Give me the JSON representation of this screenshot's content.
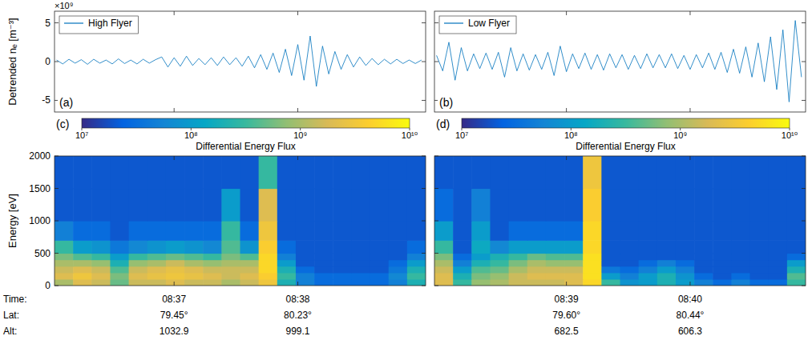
{
  "chart_data": [
    {
      "type": "line",
      "yscale_label": "×10⁹",
      "ylabel": "Detrended nₑ [m⁻³]",
      "panel_label": "(a)",
      "xlim": [
        2162,
        2342
      ],
      "xticks": [
        2220,
        2280
      ],
      "ylim": [
        -6.5,
        6.5
      ],
      "yticks": [
        -5,
        0,
        5
      ],
      "tick_labels": "y",
      "legend": "upper left",
      "series": [
        {
          "name": "High Flyer",
          "color": "#0072bd",
          "x": [
            2163,
            2166,
            2169,
            2172,
            2175,
            2178,
            2181,
            2184,
            2187,
            2190,
            2193,
            2196,
            2199,
            2202,
            2205,
            2208,
            2211,
            2214,
            2217,
            2220,
            2223,
            2226,
            2229,
            2232,
            2235,
            2238,
            2241,
            2244,
            2247,
            2250,
            2253,
            2256,
            2259,
            2262,
            2265,
            2268,
            2271,
            2274,
            2277,
            2280,
            2283,
            2286,
            2289,
            2292,
            2295,
            2298,
            2301,
            2304,
            2307,
            2310,
            2313,
            2316,
            2319,
            2322,
            2325,
            2328,
            2331,
            2334,
            2337,
            2340
          ],
          "values": [
            0.2,
            -0.3,
            0.3,
            -0.2,
            0.25,
            -0.35,
            0.3,
            -0.2,
            0.2,
            -0.3,
            0.35,
            -0.25,
            0.2,
            -0.3,
            0.3,
            -0.2,
            0.25,
            0.6,
            -0.7,
            0.5,
            -0.6,
            0.7,
            -0.5,
            0.4,
            -0.4,
            0.5,
            -0.5,
            0.6,
            -0.4,
            0.5,
            -0.6,
            0.7,
            -0.8,
            0.9,
            -1.0,
            1.1,
            -1.4,
            1.6,
            -1.8,
            2.2,
            -2.4,
            3.3,
            -3.2,
            2.0,
            -1.6,
            1.3,
            -1.0,
            0.9,
            -0.7,
            0.6,
            -0.5,
            0.4,
            -0.4,
            0.3,
            -0.3,
            0.3,
            -0.25,
            0.2,
            -0.25,
            0.2
          ]
        }
      ]
    },
    {
      "type": "line",
      "panel_label": "(b)",
      "xlim": [
        2276,
        2456
      ],
      "xticks": [
        2340,
        2400
      ],
      "ylim": [
        -6.5,
        6.5
      ],
      "yticks": [
        -5,
        0,
        5
      ],
      "tick_labels": false,
      "legend": "upper left",
      "series": [
        {
          "name": "Low Flyer",
          "color": "#0072bd",
          "x": [
            2277,
            2280,
            2283,
            2286,
            2289,
            2292,
            2295,
            2298,
            2301,
            2304,
            2307,
            2310,
            2313,
            2316,
            2319,
            2322,
            2325,
            2328,
            2331,
            2334,
            2337,
            2340,
            2343,
            2346,
            2349,
            2352,
            2355,
            2358,
            2361,
            2364,
            2367,
            2370,
            2373,
            2376,
            2379,
            2382,
            2385,
            2388,
            2391,
            2394,
            2397,
            2400,
            2403,
            2406,
            2409,
            2412,
            2415,
            2418,
            2421,
            2424,
            2427,
            2430,
            2433,
            2436,
            2439,
            2442,
            2445,
            2448,
            2451,
            2454
          ],
          "values": [
            0.8,
            -1.2,
            2.5,
            -2.4,
            1.8,
            -1.2,
            1.0,
            -0.9,
            1.1,
            -1.0,
            1.2,
            -2.0,
            1.8,
            -1.2,
            1.0,
            -1.1,
            0.9,
            -1.0,
            1.2,
            -1.8,
            2.0,
            -1.3,
            1.0,
            -0.9,
            1.1,
            -1.0,
            0.9,
            -1.1,
            1.0,
            -0.8,
            0.9,
            -1.0,
            0.8,
            -0.9,
            1.0,
            -0.8,
            0.9,
            -0.8,
            1.0,
            -0.9,
            0.8,
            -1.0,
            0.9,
            -0.8,
            1.1,
            -1.0,
            1.2,
            -1.4,
            1.6,
            -1.5,
            1.9,
            -2.0,
            2.4,
            -2.6,
            3.2,
            -3.6,
            4.1,
            -5.2,
            5.3,
            -2.0
          ]
        }
      ]
    },
    {
      "type": "heatmap",
      "ylabel": "Energy [eV]",
      "xlabel": "Time:",
      "panel_label": "(c)",
      "xlim": [
        2162,
        2342
      ],
      "xticks": [
        {
          "value": 2220,
          "label": "08:37"
        },
        {
          "value": 2280,
          "label": "08:38"
        }
      ],
      "tick_rows": [
        {
          "label": "Lat:",
          "values": [
            "79.45°",
            "80.23°"
          ]
        },
        {
          "label": "Alt:",
          "values": [
            1032.9,
            999.1
          ]
        }
      ],
      "ylim": [
        0,
        2000
      ],
      "yticks": [
        0,
        500,
        1000,
        1500,
        2000
      ],
      "tick_labels": true,
      "x_edges": [
        2162,
        2171,
        2180,
        2189,
        2198,
        2207,
        2216,
        2225,
        2234,
        2243,
        2252,
        2261,
        2270,
        2279,
        2288,
        2297,
        2306,
        2315,
        2324,
        2333,
        2342
      ],
      "y_edges": [
        0,
        100,
        200,
        300,
        400,
        500,
        700,
        1000,
        1500,
        2000
      ],
      "cells": [
        [
          1000000000.0,
          2000000000.0,
          1500000000.0,
          500000000.0,
          1500000000.0,
          1500000000.0,
          2000000000.0,
          1500000000.0,
          1500000000.0,
          1000000000.0,
          1500000000.0,
          3000000000.0,
          200000000.0,
          50000000.0,
          30000000.0,
          30000000.0,
          30000000.0,
          30000000.0,
          50000000.0,
          200000000.0
        ],
        [
          2000000000.0,
          3000000000.0,
          2000000000.0,
          600000000.0,
          2000000000.0,
          2500000000.0,
          3000000000.0,
          2500000000.0,
          2000000000.0,
          1500000000.0,
          2000000000.0,
          4000000000.0,
          300000000.0,
          50000000.0,
          30000000.0,
          30000000.0,
          30000000.0,
          30000000.0,
          60000000.0,
          300000000.0
        ],
        [
          1500000000.0,
          2000000000.0,
          1500000000.0,
          400000000.0,
          1500000000.0,
          2000000000.0,
          2500000000.0,
          2000000000.0,
          1500000000.0,
          1500000000.0,
          1500000000.0,
          5000000000.0,
          200000000.0,
          30000000.0,
          20000000.0,
          20000000.0,
          20000000.0,
          20000000.0,
          40000000.0,
          200000000.0
        ],
        [
          1000000000.0,
          1000000000.0,
          800000000.0,
          200000000.0,
          800000000.0,
          1000000000.0,
          1500000000.0,
          1000000000.0,
          800000000.0,
          1000000000.0,
          1000000000.0,
          5000000000.0,
          100000000.0,
          20000000.0,
          20000000.0,
          20000000.0,
          20000000.0,
          20000000.0,
          30000000.0,
          100000000.0
        ],
        [
          600000000.0,
          400000000.0,
          300000000.0,
          100000000.0,
          300000000.0,
          400000000.0,
          500000000.0,
          400000000.0,
          300000000.0,
          600000000.0,
          400000000.0,
          5000000000.0,
          50000000.0,
          20000000.0,
          20000000.0,
          20000000.0,
          20000000.0,
          20000000.0,
          20000000.0,
          50000000.0
        ],
        [
          300000000.0,
          100000000.0,
          80000000.0,
          40000000.0,
          60000000.0,
          80000000.0,
          100000000.0,
          80000000.0,
          60000000.0,
          400000000.0,
          80000000.0,
          4000000000.0,
          30000000.0,
          20000000.0,
          20000000.0,
          20000000.0,
          20000000.0,
          20000000.0,
          20000000.0,
          30000000.0
        ],
        [
          50000000.0,
          30000000.0,
          30000000.0,
          20000000.0,
          30000000.0,
          30000000.0,
          30000000.0,
          30000000.0,
          30000000.0,
          300000000.0,
          30000000.0,
          3000000000.0,
          20000000.0,
          20000000.0,
          20000000.0,
          20000000.0,
          20000000.0,
          20000000.0,
          20000000.0,
          20000000.0
        ],
        [
          20000000.0,
          20000000.0,
          20000000.0,
          20000000.0,
          20000000.0,
          20000000.0,
          20000000.0,
          20000000.0,
          20000000.0,
          100000000.0,
          20000000.0,
          2000000000.0,
          20000000.0,
          20000000.0,
          20000000.0,
          20000000.0,
          20000000.0,
          20000000.0,
          20000000.0,
          20000000.0
        ],
        [
          20000000.0,
          20000000.0,
          20000000.0,
          20000000.0,
          20000000.0,
          20000000.0,
          20000000.0,
          20000000.0,
          20000000.0,
          20000000.0,
          20000000.0,
          300000000.0,
          20000000.0,
          20000000.0,
          20000000.0,
          20000000.0,
          20000000.0,
          20000000.0,
          20000000.0,
          20000000.0
        ]
      ],
      "colorbar": {
        "label": "Differential Energy Flux",
        "range": [
          10000000.0,
          10000000000.0
        ],
        "log": true,
        "ticks": [
          {
            "value": 10000000.0,
            "label": "10⁷"
          },
          {
            "value": 100000000.0,
            "label": "10⁸"
          },
          {
            "value": 1000000000.0,
            "label": "10⁹"
          },
          {
            "value": 10000000000.0,
            "label": "10¹⁰"
          }
        ]
      }
    },
    {
      "type": "heatmap",
      "panel_label": "(d)",
      "xlim": [
        2276,
        2456
      ],
      "xticks": [
        {
          "value": 2340,
          "label": "08:39"
        },
        {
          "value": 2400,
          "label": "08:40"
        }
      ],
      "tick_rows": [
        {
          "values": [
            "79.60°",
            "80.44°"
          ]
        },
        {
          "values": [
            682.5,
            606.3
          ]
        }
      ],
      "ylim": [
        0,
        2000
      ],
      "yticks": [
        0,
        500,
        1000,
        1500,
        2000
      ],
      "tick_labels": "x",
      "x_edges": [
        2276,
        2285,
        2294,
        2303,
        2312,
        2321,
        2330,
        2339,
        2348,
        2357,
        2366,
        2375,
        2384,
        2393,
        2402,
        2411,
        2420,
        2429,
        2438,
        2447,
        2456
      ],
      "y_edges": [
        0,
        100,
        200,
        300,
        400,
        500,
        700,
        1000,
        1500,
        2000
      ],
      "cells": [
        [
          2000000000.0,
          300000000.0,
          800000000.0,
          1000000000.0,
          1500000000.0,
          1500000000.0,
          1500000000.0,
          2000000000.0,
          5000000000.0,
          300000000.0,
          80000000.0,
          100000000.0,
          200000000.0,
          100000000.0,
          50000000.0,
          30000000.0,
          50000000.0,
          30000000.0,
          30000000.0,
          300000000.0
        ],
        [
          2000000000.0,
          200000000.0,
          600000000.0,
          800000000.0,
          1500000000.0,
          2000000000.0,
          2000000000.0,
          2000000000.0,
          6000000000.0,
          100000000.0,
          50000000.0,
          100000000.0,
          200000000.0,
          80000000.0,
          30000000.0,
          20000000.0,
          30000000.0,
          20000000.0,
          20000000.0,
          400000000.0
        ],
        [
          1500000000.0,
          100000000.0,
          400000000.0,
          500000000.0,
          1000000000.0,
          1500000000.0,
          1500000000.0,
          1500000000.0,
          6000000000.0,
          40000000.0,
          30000000.0,
          50000000.0,
          100000000.0,
          50000000.0,
          20000000.0,
          20000000.0,
          20000000.0,
          20000000.0,
          20000000.0,
          200000000.0
        ],
        [
          1000000000.0,
          50000000.0,
          200000000.0,
          300000000.0,
          600000000.0,
          1000000000.0,
          800000000.0,
          800000000.0,
          6000000000.0,
          20000000.0,
          20000000.0,
          30000000.0,
          50000000.0,
          30000000.0,
          20000000.0,
          20000000.0,
          20000000.0,
          20000000.0,
          20000000.0,
          100000000.0
        ],
        [
          600000000.0,
          30000000.0,
          100000000.0,
          200000000.0,
          300000000.0,
          500000000.0,
          400000000.0,
          400000000.0,
          6000000000.0,
          20000000.0,
          20000000.0,
          20000000.0,
          20000000.0,
          20000000.0,
          20000000.0,
          20000000.0,
          20000000.0,
          20000000.0,
          20000000.0,
          30000000.0
        ],
        [
          300000000.0,
          20000000.0,
          150000000.0,
          60000000.0,
          100000000.0,
          100000000.0,
          100000000.0,
          100000000.0,
          5000000000.0,
          20000000.0,
          20000000.0,
          20000000.0,
          20000000.0,
          20000000.0,
          20000000.0,
          20000000.0,
          20000000.0,
          20000000.0,
          20000000.0,
          20000000.0
        ],
        [
          100000000.0,
          20000000.0,
          100000000.0,
          20000000.0,
          30000000.0,
          30000000.0,
          30000000.0,
          30000000.0,
          5000000000.0,
          20000000.0,
          20000000.0,
          20000000.0,
          20000000.0,
          20000000.0,
          20000000.0,
          20000000.0,
          20000000.0,
          20000000.0,
          20000000.0,
          20000000.0
        ],
        [
          30000000.0,
          20000000.0,
          50000000.0,
          20000000.0,
          20000000.0,
          20000000.0,
          20000000.0,
          20000000.0,
          4000000000.0,
          20000000.0,
          20000000.0,
          20000000.0,
          20000000.0,
          20000000.0,
          20000000.0,
          20000000.0,
          20000000.0,
          20000000.0,
          20000000.0,
          20000000.0
        ],
        [
          20000000.0,
          20000000.0,
          20000000.0,
          20000000.0,
          20000000.0,
          20000000.0,
          20000000.0,
          20000000.0,
          3000000000.0,
          20000000.0,
          20000000.0,
          20000000.0,
          20000000.0,
          20000000.0,
          20000000.0,
          20000000.0,
          20000000.0,
          20000000.0,
          20000000.0,
          20000000.0
        ]
      ],
      "colorbar": {
        "label": "Differential Energy Flux",
        "range": [
          10000000.0,
          10000000000.0
        ],
        "log": true,
        "ticks": [
          {
            "value": 10000000.0,
            "label": "10⁷"
          },
          {
            "value": 100000000.0,
            "label": "10⁸"
          },
          {
            "value": 1000000000.0,
            "label": "10⁹"
          },
          {
            "value": 10000000000.0,
            "label": "10¹⁰"
          }
        ]
      }
    }
  ]
}
